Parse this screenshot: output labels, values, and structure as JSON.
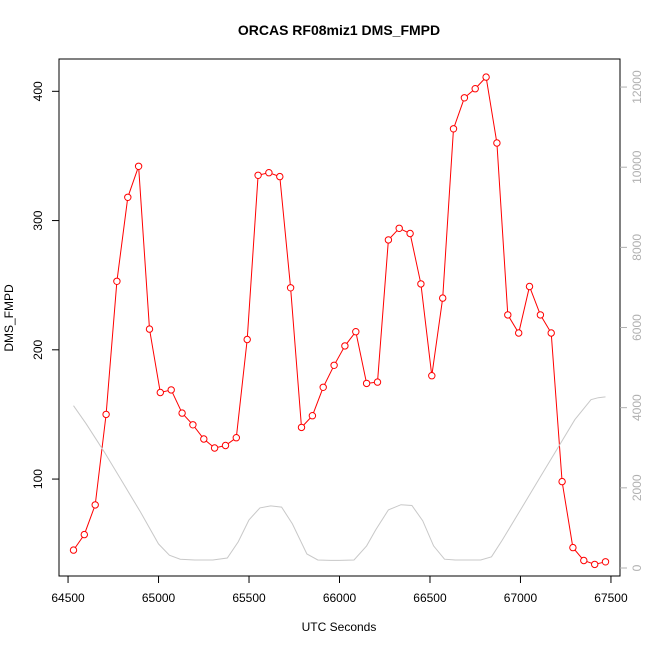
{
  "chart_data": {
    "type": "line",
    "title": "ORCAS RF08miz1 DMS_FMPD",
    "xlabel": "UTC Seconds",
    "ylabel": "DMS_FMPD",
    "xlim": [
      64450,
      67550
    ],
    "ylim": [
      25,
      425
    ],
    "y2lim": [
      -200,
      12700
    ],
    "x_ticks": [
      64500,
      65000,
      65500,
      66000,
      66500,
      67000,
      67500
    ],
    "y_ticks": [
      100,
      200,
      300,
      400
    ],
    "y2_ticks": [
      0,
      2000,
      4000,
      6000,
      8000,
      10000,
      12000
    ],
    "colors": {
      "primary": "#ff0000",
      "secondary": "#c8c8c8"
    },
    "series": [
      {
        "axis": "left",
        "style": "line-points",
        "x": [
          64530,
          64590,
          64650,
          64710,
          64770,
          64830,
          64890,
          64950,
          65010,
          65070,
          65130,
          65190,
          65250,
          65310,
          65370,
          65430,
          65490,
          65550,
          65610,
          65670,
          65730,
          65790,
          65850,
          65910,
          65970,
          66030,
          66090,
          66150,
          66210,
          66270,
          66330,
          66390,
          66450,
          66510,
          66570,
          66630,
          66690,
          66750,
          66810,
          66870,
          66930,
          66990,
          67050,
          67110,
          67170,
          67230,
          67290,
          67350,
          67410,
          67470
        ],
        "y": [
          45,
          57,
          80,
          150,
          253,
          318,
          342,
          216,
          167,
          169,
          151,
          142,
          131,
          124,
          126,
          132,
          208,
          335,
          337,
          334,
          248,
          140,
          149,
          171,
          188,
          203,
          214,
          174,
          175,
          285,
          294,
          290,
          251,
          180,
          240,
          371,
          395,
          402,
          411,
          360,
          227,
          213,
          249,
          227,
          213,
          98,
          47,
          37,
          34,
          36
        ]
      },
      {
        "axis": "right",
        "style": "line",
        "x": [
          64530,
          64600,
          64700,
          64800,
          64900,
          65000,
          65060,
          65120,
          65200,
          65300,
          65380,
          65440,
          65500,
          65560,
          65620,
          65680,
          65740,
          65820,
          65880,
          65950,
          66000,
          66080,
          66150,
          66200,
          66270,
          66340,
          66400,
          66460,
          66520,
          66580,
          66640,
          66700,
          66780,
          66840,
          66900,
          67000,
          67100,
          67200,
          67300,
          67390,
          67430,
          67470
        ],
        "y": [
          4050,
          3600,
          2900,
          2150,
          1400,
          600,
          320,
          220,
          200,
          200,
          250,
          650,
          1200,
          1500,
          1550,
          1520,
          1100,
          350,
          200,
          190,
          190,
          200,
          550,
          950,
          1450,
          1580,
          1560,
          1180,
          550,
          220,
          200,
          200,
          200,
          280,
          700,
          1450,
          2200,
          2950,
          3700,
          4200,
          4250,
          4270
        ]
      }
    ]
  }
}
